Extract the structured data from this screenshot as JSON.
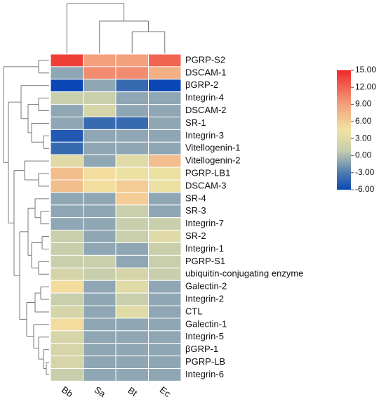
{
  "chart_data": {
    "type": "heatmap",
    "x": [
      "Bb",
      "Sa",
      "Bt",
      "Ec"
    ],
    "y": [
      "PGRP-S2",
      "DSCAM-1",
      "βGRP-2",
      "Integrin-4",
      "DSCAM-2",
      "SR-1",
      "Integrin-3",
      "Vitellogenin-1",
      "Vitellogenin-2",
      "PGRP-LB1",
      "DSCAM-3",
      "SR-4",
      "SR-3",
      "Integrin-7",
      "SR-2",
      "Integrin-1",
      "PGRP-S1",
      "ubiquitin-conjugating enzyme",
      "Galectin-2",
      "Integrin-2",
      "CTL",
      "Galectin-1",
      "Integrin-5",
      "βGRP-1",
      "PGRP-LB",
      "Integrin-6"
    ],
    "values": [
      [
        14,
        9,
        9,
        12
      ],
      [
        -1,
        10,
        10,
        8
      ],
      [
        -6,
        -1,
        -4,
        -6
      ],
      [
        1,
        1,
        -1,
        -1
      ],
      [
        -1,
        2,
        -1,
        -1
      ],
      [
        -1,
        -4,
        -4,
        -1
      ],
      [
        -5,
        -1,
        -1,
        -1
      ],
      [
        -4,
        -1,
        -1,
        -1
      ],
      [
        3,
        -1,
        3,
        7
      ],
      [
        7,
        5,
        4,
        4
      ],
      [
        7,
        5,
        6,
        4
      ],
      [
        -1,
        -1,
        6,
        -1
      ],
      [
        -1,
        -1,
        1,
        -1
      ],
      [
        -1,
        -1,
        1,
        1
      ],
      [
        1,
        -1,
        1,
        3
      ],
      [
        1,
        -1,
        -1,
        1
      ],
      [
        1,
        1,
        -1,
        1
      ],
      [
        2,
        1,
        2,
        1
      ],
      [
        5,
        -1,
        3,
        -1
      ],
      [
        1,
        -1,
        1,
        -1
      ],
      [
        2,
        -1,
        3,
        -1
      ],
      [
        5,
        -1,
        -1,
        -1
      ],
      [
        2,
        -1,
        -1,
        -1
      ],
      [
        2,
        -1,
        -1,
        -1
      ],
      [
        2,
        -1,
        -1,
        -1
      ],
      [
        1,
        -1,
        -1,
        -1
      ]
    ],
    "colorscale": [
      [
        -6,
        "#0b47b5"
      ],
      [
        -3,
        "#4f7caf"
      ],
      [
        -1,
        "#8fa7b4"
      ],
      [
        1,
        "#c9cfac"
      ],
      [
        4.5,
        "#f2e3a2"
      ],
      [
        9,
        "#f4a07c"
      ],
      [
        15,
        "#ee2a2a"
      ]
    ],
    "zlim": [
      -6,
      15
    ],
    "zticks": [
      {
        "value": 15,
        "label": "15.00"
      },
      {
        "value": 12,
        "label": "12.00"
      },
      {
        "value": 9,
        "label": "9.00"
      },
      {
        "value": 6,
        "label": "6.00"
      },
      {
        "value": 3,
        "label": "3.00"
      },
      {
        "value": 0,
        "label": "0.00"
      },
      {
        "value": -3,
        "label": "-3.00"
      },
      {
        "value": -6,
        "label": "-6.00"
      }
    ]
  }
}
